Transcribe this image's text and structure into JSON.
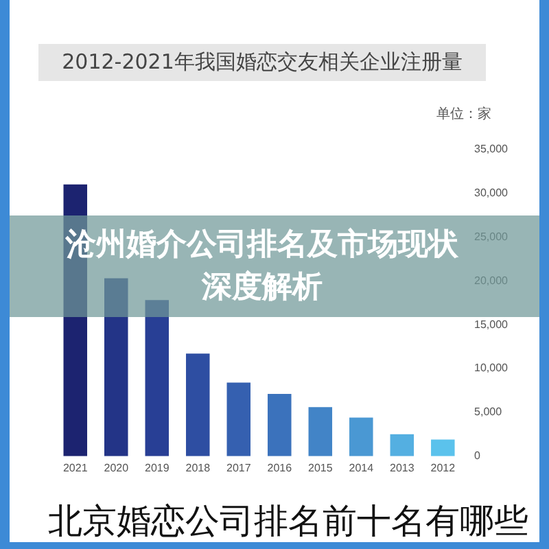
{
  "chart_data": {
    "type": "bar",
    "title": "2012-2021年我国婚恋交友相关企业注册量",
    "ylabel": "单位：家",
    "annotations": [
      "沧州婚介公司排名及市场现状深度解析",
      "北京婚恋公司排名前十名有哪些"
    ],
    "categories": [
      "2021",
      "2020",
      "2019",
      "2018",
      "2017",
      "2016",
      "2015",
      "2014",
      "2013",
      "2012"
    ],
    "values": [
      31000,
      20300,
      17800,
      11700,
      8400,
      7100,
      5600,
      4400,
      2500,
      1900
    ],
    "colors": [
      "#1c2370",
      "#233487",
      "#283f95",
      "#2e4ea2",
      "#3560b0",
      "#3b72bc",
      "#4284c7",
      "#4a98d3",
      "#54afe1",
      "#5bc2ec"
    ],
    "ylim": [
      0,
      35000
    ],
    "yticks": [
      0,
      {
        "value": 5000,
        "label": "5,000"
      },
      {
        "value": 10000,
        "label": "10,000"
      },
      {
        "value": 15000,
        "label": "15,000"
      },
      {
        "value": 20000,
        "label": "20,000"
      },
      {
        "value": 25000,
        "label": "25,000"
      },
      {
        "value": 30000,
        "label": "30,000"
      },
      {
        "value": 35000,
        "label": "35,000"
      }
    ],
    "grid": false,
    "legend": false
  }
}
